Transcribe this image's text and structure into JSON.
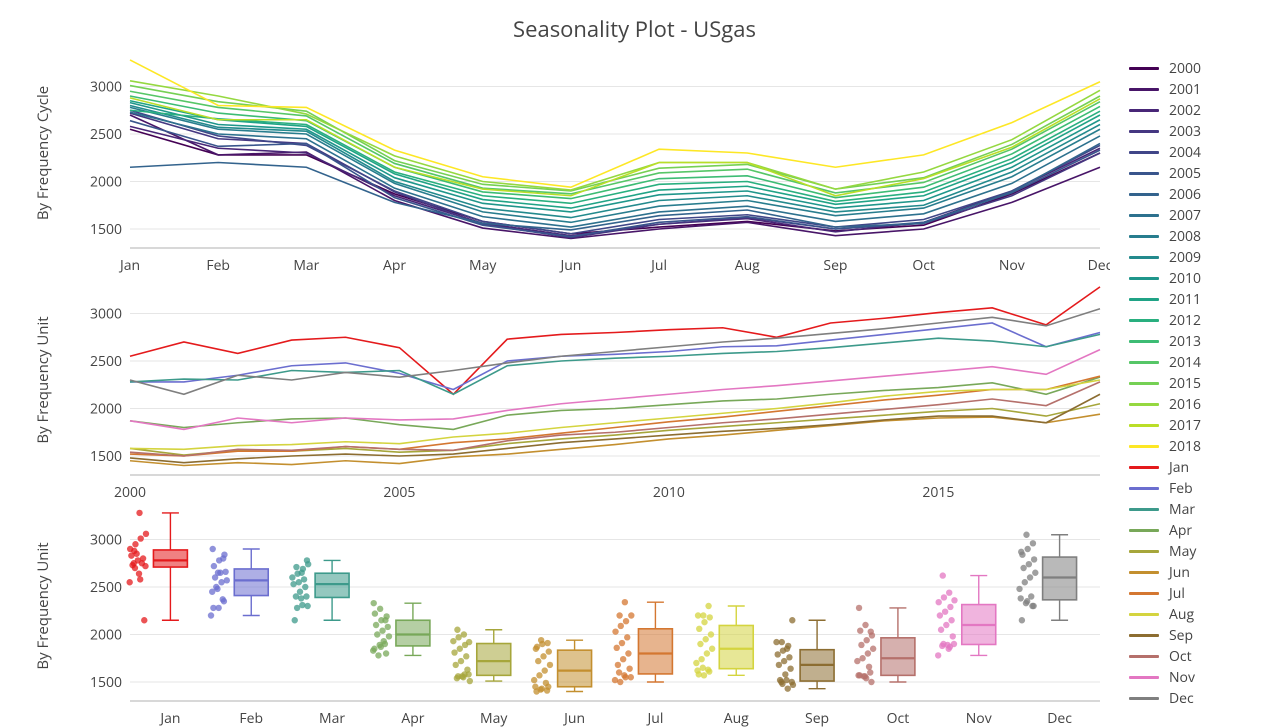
{
  "title": "Seasonality Plot - USgas",
  "panel_labels": {
    "p1": "By Frequency Cycle",
    "p2": "By Frequency Unit",
    "p3": "By Frequency Unit"
  },
  "months": [
    "Jan",
    "Feb",
    "Mar",
    "Apr",
    "May",
    "Jun",
    "Jul",
    "Aug",
    "Sep",
    "Oct",
    "Nov",
    "Dec"
  ],
  "years": [
    "2000",
    "2001",
    "2002",
    "2003",
    "2004",
    "2005",
    "2006",
    "2007",
    "2008",
    "2009",
    "2010",
    "2011",
    "2012",
    "2013",
    "2014",
    "2015",
    "2016",
    "2017",
    "2018"
  ],
  "year_colors": [
    "#440154",
    "#481568",
    "#482677",
    "#453781",
    "#404688",
    "#39558c",
    "#33638d",
    "#2d718e",
    "#287d8e",
    "#238a8d",
    "#1f968b",
    "#20a386",
    "#29af7f",
    "#3dbc74",
    "#56c667",
    "#75d054",
    "#95d840",
    "#bade28",
    "#fde725"
  ],
  "month_colors": [
    "#e41a1c",
    "#6b6ecf",
    "#3d9a8b",
    "#78a859",
    "#a6a63b",
    "#c38f2f",
    "#d47731",
    "#d4d43f",
    "#8c6d31",
    "#b5706b",
    "#e377c2",
    "#7f7f7f"
  ],
  "panel1": {
    "ylim": [
      1300,
      3300
    ],
    "yticks": [
      1500,
      2000,
      2500,
      3000
    ],
    "series": [
      [
        2550,
        2280,
        2280,
        1870,
        1580,
        1450,
        1520,
        1580,
        1480,
        1540,
        1870,
        2300
      ],
      [
        2700,
        2280,
        2310,
        1800,
        1510,
        1400,
        1500,
        1570,
        1430,
        1500,
        1780,
        2150
      ],
      [
        2580,
        2350,
        2300,
        1850,
        1560,
        1430,
        1550,
        1610,
        1470,
        1570,
        1900,
        2350
      ],
      [
        2720,
        2450,
        2400,
        1890,
        1550,
        1410,
        1550,
        1620,
        1500,
        1560,
        1850,
        2300
      ],
      [
        2750,
        2480,
        2380,
        1900,
        1580,
        1450,
        1600,
        1650,
        1520,
        1600,
        1900,
        2380
      ],
      [
        2640,
        2370,
        2400,
        1830,
        1540,
        1420,
        1570,
        1630,
        1500,
        1570,
        1880,
        2330
      ],
      [
        2150,
        2200,
        2150,
        1780,
        1560,
        1490,
        1640,
        1700,
        1520,
        1560,
        1890,
        2400
      ],
      [
        2730,
        2500,
        2450,
        1930,
        1630,
        1520,
        1680,
        1740,
        1580,
        1660,
        1980,
        2480
      ],
      [
        2780,
        2550,
        2500,
        1980,
        1680,
        1570,
        1740,
        1800,
        1640,
        1720,
        2050,
        2550
      ],
      [
        2800,
        2570,
        2530,
        2000,
        1720,
        1620,
        1800,
        1850,
        1680,
        1750,
        2100,
        2600
      ],
      [
        2830,
        2600,
        2550,
        2040,
        1770,
        1680,
        1860,
        1900,
        1720,
        1800,
        2150,
        2650
      ],
      [
        2850,
        2650,
        2580,
        2080,
        1810,
        1720,
        1910,
        1950,
        1760,
        1850,
        2200,
        2700
      ],
      [
        2750,
        2660,
        2600,
        2100,
        1850,
        1770,
        1970,
        2000,
        1790,
        1890,
        2240,
        2740
      ],
      [
        2900,
        2720,
        2640,
        2150,
        1890,
        1820,
        2030,
        2060,
        1830,
        1940,
        2290,
        2790
      ],
      [
        2950,
        2780,
        2690,
        2190,
        1930,
        1870,
        2090,
        2130,
        1880,
        1990,
        2340,
        2840
      ],
      [
        3010,
        2840,
        2740,
        2220,
        1970,
        1900,
        2140,
        2180,
        1920,
        2040,
        2390,
        2900
      ],
      [
        3060,
        2900,
        2710,
        2270,
        2000,
        1910,
        2200,
        2200,
        1920,
        2100,
        2440,
        2960
      ],
      [
        2880,
        2650,
        2650,
        2150,
        1920,
        1850,
        2200,
        2200,
        1850,
        2030,
        2360,
        2870
      ],
      [
        3280,
        2800,
        2780,
        2330,
        2050,
        1940,
        2340,
        2300,
        2150,
        2280,
        2620,
        3050
      ]
    ]
  },
  "panel2": {
    "xlim": [
      2000,
      2018
    ],
    "xticks": [
      2000,
      2005,
      2010,
      2015
    ],
    "ylim": [
      1300,
      3300
    ],
    "yticks": [
      1500,
      2000,
      2500,
      3000
    ],
    "series": [
      [
        2550,
        2700,
        2580,
        2720,
        2750,
        2640,
        2150,
        2730,
        2780,
        2800,
        2830,
        2850,
        2750,
        2900,
        2950,
        3010,
        3060,
        2880,
        3280
      ],
      [
        2280,
        2280,
        2350,
        2450,
        2480,
        2370,
        2200,
        2500,
        2550,
        2570,
        2600,
        2650,
        2660,
        2720,
        2780,
        2840,
        2900,
        2650,
        2800
      ],
      [
        2280,
        2310,
        2300,
        2400,
        2380,
        2400,
        2150,
        2450,
        2500,
        2530,
        2550,
        2580,
        2600,
        2640,
        2690,
        2740,
        2710,
        2650,
        2780
      ],
      [
        1870,
        1800,
        1850,
        1890,
        1900,
        1830,
        1780,
        1930,
        1980,
        2000,
        2040,
        2080,
        2100,
        2150,
        2190,
        2220,
        2270,
        2150,
        2330
      ],
      [
        1580,
        1510,
        1560,
        1550,
        1580,
        1540,
        1560,
        1630,
        1680,
        1720,
        1770,
        1810,
        1850,
        1890,
        1930,
        1970,
        2000,
        1920,
        2050
      ],
      [
        1450,
        1400,
        1430,
        1410,
        1450,
        1420,
        1490,
        1520,
        1570,
        1620,
        1680,
        1720,
        1770,
        1820,
        1870,
        1900,
        1910,
        1850,
        1940
      ],
      [
        1520,
        1500,
        1550,
        1550,
        1600,
        1570,
        1640,
        1680,
        1740,
        1800,
        1860,
        1910,
        1970,
        2030,
        2090,
        2140,
        2200,
        2200,
        2340
      ],
      [
        1580,
        1570,
        1610,
        1620,
        1650,
        1630,
        1700,
        1740,
        1800,
        1850,
        1900,
        1950,
        2000,
        2060,
        2130,
        2180,
        2200,
        2200,
        2300
      ],
      [
        1480,
        1430,
        1470,
        1500,
        1520,
        1500,
        1520,
        1580,
        1640,
        1680,
        1720,
        1760,
        1790,
        1830,
        1880,
        1920,
        1920,
        1850,
        2150
      ],
      [
        1540,
        1500,
        1570,
        1560,
        1600,
        1570,
        1560,
        1660,
        1720,
        1750,
        1800,
        1850,
        1890,
        1940,
        1990,
        2040,
        2100,
        2030,
        2280
      ],
      [
        1870,
        1780,
        1900,
        1850,
        1900,
        1880,
        1890,
        1980,
        2050,
        2100,
        2150,
        2200,
        2240,
        2290,
        2340,
        2390,
        2440,
        2360,
        2620
      ],
      [
        2300,
        2150,
        2350,
        2300,
        2380,
        2330,
        2400,
        2480,
        2550,
        2600,
        2650,
        2700,
        2740,
        2790,
        2840,
        2900,
        2960,
        2870,
        3050
      ]
    ]
  },
  "panel3": {
    "ylim": [
      1300,
      3300
    ],
    "yticks": [
      1500,
      2000,
      2500,
      3000
    ]
  },
  "legend": {
    "years": [
      "2000",
      "2001",
      "2002",
      "2003",
      "2004",
      "2005",
      "2006",
      "2007",
      "2008",
      "2009",
      "2010",
      "2011",
      "2012",
      "2013",
      "2014",
      "2015",
      "2016",
      "2017",
      "2018"
    ],
    "months": [
      "Jan",
      "Feb",
      "Mar",
      "Apr",
      "May",
      "Jun",
      "Jul",
      "Aug",
      "Sep",
      "Oct",
      "Nov",
      "Dec"
    ]
  },
  "style": {
    "background": "#ffffff",
    "grid_color": "#e6e6e6",
    "axis_color": "#b0b0b0",
    "text_color": "#444444",
    "line_width": 1.6,
    "point_radius": 3.2,
    "title_fontsize": 22,
    "tick_fontsize": 14
  }
}
